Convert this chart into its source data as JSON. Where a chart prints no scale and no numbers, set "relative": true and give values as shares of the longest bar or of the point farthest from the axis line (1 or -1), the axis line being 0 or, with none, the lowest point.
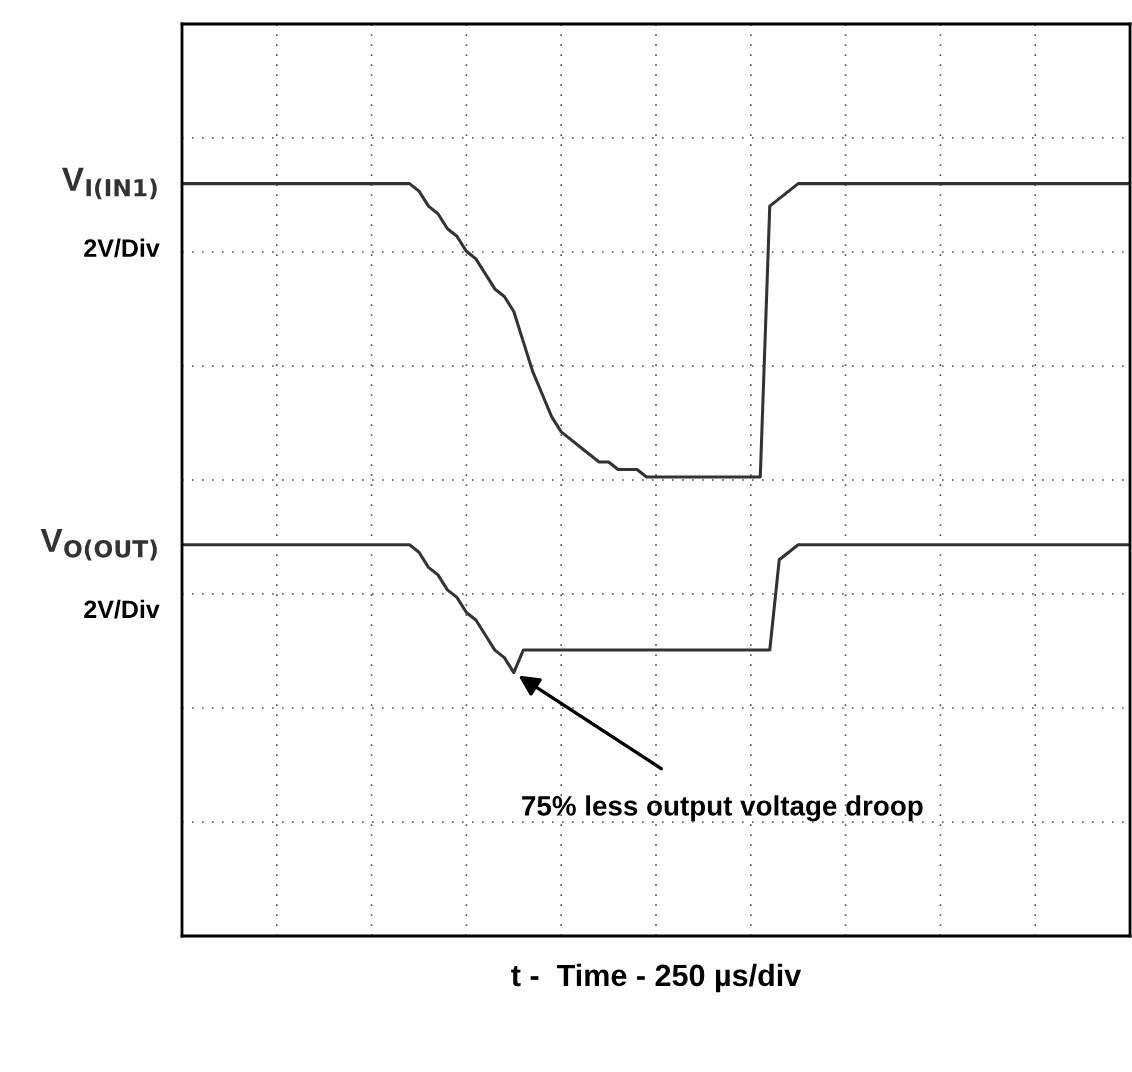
{
  "chart_data": {
    "type": "line",
    "relative": true,
    "grid": true,
    "legend": false,
    "marker": "none",
    "line_style": "solid",
    "xlabel": "t -  Time - 250 µs/div",
    "categories": [
      null,
      null,
      null,
      null,
      null,
      null,
      null,
      null,
      null,
      null,
      null,
      null,
      null,
      null,
      null,
      null,
      null,
      null,
      null,
      null,
      null,
      null,
      null,
      null,
      null,
      null,
      null,
      null,
      null,
      null,
      null,
      null,
      null,
      null,
      null,
      null,
      null,
      null,
      null,
      null,
      null,
      null,
      null,
      null,
      null,
      null,
      null,
      null,
      null,
      null,
      null,
      null,
      null,
      null,
      null,
      null,
      null,
      null,
      null,
      null,
      null,
      null,
      null,
      null,
      null,
      null,
      null,
      null,
      null,
      null,
      null,
      null,
      null,
      null,
      null,
      null,
      null,
      null,
      null,
      null,
      null,
      null,
      null,
      null,
      null,
      null,
      null,
      null,
      null,
      null,
      null,
      null,
      null,
      null,
      null,
      null,
      null,
      null,
      null,
      null,
      null
    ],
    "series": [
      {
        "name": "V$_{I(IN1)}$",
        "color": "#333333",
        "values": [
          1.0,
          1.0,
          1.0,
          1.0,
          1.0,
          1.0,
          1.0,
          1.0,
          1.0,
          1.0,
          1.0,
          1.0,
          1.0,
          1.0,
          1.0,
          1.0,
          1.0,
          1.0,
          1.0,
          1.0,
          1.0,
          1.0,
          1.0,
          1.0,
          1.0,
          0.99,
          0.97,
          0.96,
          0.94,
          0.93,
          0.91,
          0.9,
          0.88,
          0.86,
          0.85,
          0.83,
          0.79,
          0.75,
          0.72,
          0.69,
          0.67,
          0.66,
          0.65,
          0.64,
          0.63,
          0.63,
          0.62,
          0.62,
          0.62,
          0.61,
          0.61,
          0.61,
          0.61,
          0.61,
          0.61,
          0.61,
          0.61,
          0.61,
          0.61,
          0.61,
          0.61,
          0.61,
          0.97,
          0.98,
          0.99,
          1.0,
          1.0,
          1.0,
          1.0,
          1.0,
          1.0,
          1.0,
          1.0,
          1.0,
          1.0,
          1.0,
          1.0,
          1.0,
          1.0,
          1.0,
          1.0,
          1.0,
          1.0,
          1.0,
          1.0,
          1.0,
          1.0,
          1.0,
          1.0,
          1.0,
          1.0,
          1.0,
          1.0,
          1.0,
          1.0,
          1.0,
          1.0,
          1.0,
          1.0,
          1.0,
          1.0
        ]
      },
      {
        "name": "V$_{O(OUT)}$",
        "color": "#333333",
        "values": [
          0.52,
          0.52,
          0.52,
          0.52,
          0.52,
          0.52,
          0.52,
          0.52,
          0.52,
          0.52,
          0.52,
          0.52,
          0.52,
          0.52,
          0.52,
          0.52,
          0.52,
          0.52,
          0.52,
          0.52,
          0.52,
          0.52,
          0.52,
          0.52,
          0.52,
          0.51,
          0.49,
          0.48,
          0.46,
          0.45,
          0.43,
          0.42,
          0.4,
          0.38,
          0.37,
          0.35,
          0.38,
          0.38,
          0.38,
          0.38,
          0.38,
          0.38,
          0.38,
          0.38,
          0.38,
          0.38,
          0.38,
          0.38,
          0.38,
          0.38,
          0.38,
          0.38,
          0.38,
          0.38,
          0.38,
          0.38,
          0.38,
          0.38,
          0.38,
          0.38,
          0.38,
          0.38,
          0.38,
          0.5,
          0.51,
          0.52,
          0.52,
          0.52,
          0.52,
          0.52,
          0.52,
          0.52,
          0.52,
          0.52,
          0.52,
          0.52,
          0.52,
          0.52,
          0.52,
          0.52,
          0.52,
          0.52,
          0.52,
          0.52,
          0.52,
          0.52,
          0.52,
          0.52,
          0.52,
          0.52,
          0.52,
          0.52,
          0.52,
          0.52,
          0.52,
          0.52,
          0.52,
          0.52,
          0.52,
          0.52,
          0.52
        ]
      }
    ],
    "annotations": [
      "2V/Div",
      "2V/Div",
      "75% less output voltage droop"
    ]
  }
}
